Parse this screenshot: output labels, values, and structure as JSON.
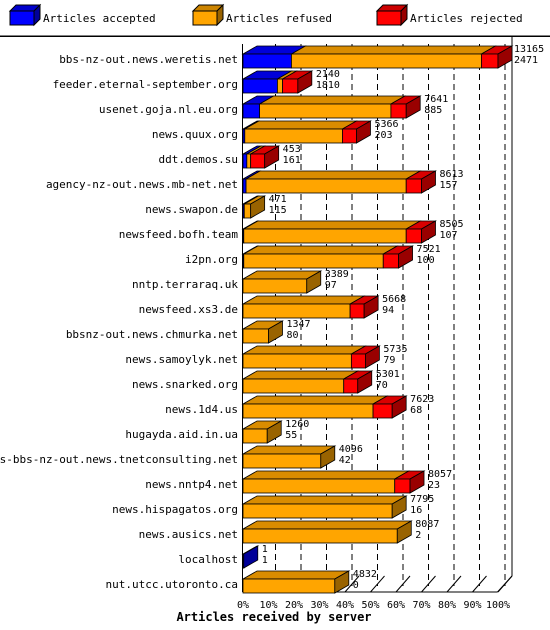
{
  "chart_data": {
    "type": "bar",
    "orientation": "horizontal",
    "stacked": true,
    "style": "3d",
    "title": "",
    "xlabel": "Articles received by server",
    "ylabel": "",
    "xlim": [
      0,
      100
    ],
    "x_unit": "%",
    "grid": "vertical dashed",
    "legend_position": "top",
    "legend": [
      {
        "name": "Articles accepted",
        "color": "#0000ff"
      },
      {
        "name": "Articles refused",
        "color": "#ffa500"
      },
      {
        "name": "Articles rejected",
        "color": "#ff0000"
      }
    ],
    "x_ticks": [
      "0%",
      "10%",
      "20%",
      "30%",
      "40%",
      "50%",
      "60%",
      "70%",
      "80%",
      "90%",
      "100%"
    ],
    "rows": [
      {
        "server": "bbs-nz-out.news.weretis.net",
        "total": "13165",
        "second": "2471",
        "accepted": 19,
        "refused": 74.5,
        "rejected": 6.5
      },
      {
        "server": "feeder.eternal-september.org",
        "total": "2140",
        "second": "1810",
        "accepted": 13.5,
        "refused": 2,
        "rejected": 6
      },
      {
        "server": "usenet.goja.nl.eu.org",
        "total": "7641",
        "second": "885",
        "accepted": 6.5,
        "refused": 51.5,
        "rejected": 6
      },
      {
        "server": "news.quux.org",
        "total": "5366",
        "second": "203",
        "accepted": 0.7,
        "refused": 38.3,
        "rejected": 5.5
      },
      {
        "server": "ddt.demos.su",
        "total": "453",
        "second": "161",
        "accepted": 1.5,
        "refused": 1.5,
        "rejected": 5.5
      },
      {
        "server": "agency-nz-out.news.mb-net.net",
        "total": "8613",
        "second": "157",
        "accepted": 1.2,
        "refused": 62.8,
        "rejected": 6
      },
      {
        "server": "news.swapon.de",
        "total": "471",
        "second": "115",
        "accepted": 0.5,
        "refused": 2.5,
        "rejected": 0
      },
      {
        "server": "newsfeed.bofh.team",
        "total": "8505",
        "second": "107",
        "accepted": 0.3,
        "refused": 63.7,
        "rejected": 6
      },
      {
        "server": "i2pn.org",
        "total": "7521",
        "second": "100",
        "accepted": 0.3,
        "refused": 54.7,
        "rejected": 6
      },
      {
        "server": "nntp.terraraq.uk",
        "total": "3389",
        "second": "97",
        "accepted": 0,
        "refused": 25,
        "rejected": 0
      },
      {
        "server": "newsfeed.xs3.de",
        "total": "5668",
        "second": "94",
        "accepted": 0,
        "refused": 42,
        "rejected": 5.5
      },
      {
        "server": "bbsnz-out.news.chmurka.net",
        "total": "1347",
        "second": "80",
        "accepted": 0,
        "refused": 10,
        "rejected": 0
      },
      {
        "server": "news.samoylyk.net",
        "total": "5735",
        "second": "79",
        "accepted": 0,
        "refused": 42.5,
        "rejected": 5.5
      },
      {
        "server": "news.snarked.org",
        "total": "5301",
        "second": "70",
        "accepted": 0,
        "refused": 39.5,
        "rejected": 5.5
      },
      {
        "server": "news.1d4.us",
        "total": "7623",
        "second": "68",
        "accepted": 0,
        "refused": 51,
        "rejected": 7.5
      },
      {
        "server": "hugayda.aid.in.ua",
        "total": "1260",
        "second": "55",
        "accepted": 0,
        "refused": 9.5,
        "rejected": 0
      },
      {
        "server": "news-bbs-nz-out.news.tnetconsulting.net",
        "total": "4096",
        "second": "42",
        "accepted": 0,
        "refused": 30.5,
        "rejected": 0
      },
      {
        "server": "news.nntp4.net",
        "total": "8057",
        "second": "23",
        "accepted": 0,
        "refused": 59.5,
        "rejected": 6
      },
      {
        "server": "news.hispagatos.org",
        "total": "7795",
        "second": "16",
        "accepted": 0,
        "refused": 58.5,
        "rejected": 0
      },
      {
        "server": "news.ausics.net",
        "total": "8087",
        "second": "2",
        "accepted": 0,
        "refused": 60.5,
        "rejected": 0
      },
      {
        "server": "localhost",
        "total": "1",
        "second": "1",
        "accepted": 0.3,
        "refused": 0,
        "rejected": 0
      },
      {
        "server": "nut.utcc.utoronto.ca",
        "total": "4832",
        "second": "0",
        "accepted": 0,
        "refused": 36,
        "rejected": 0
      }
    ]
  }
}
